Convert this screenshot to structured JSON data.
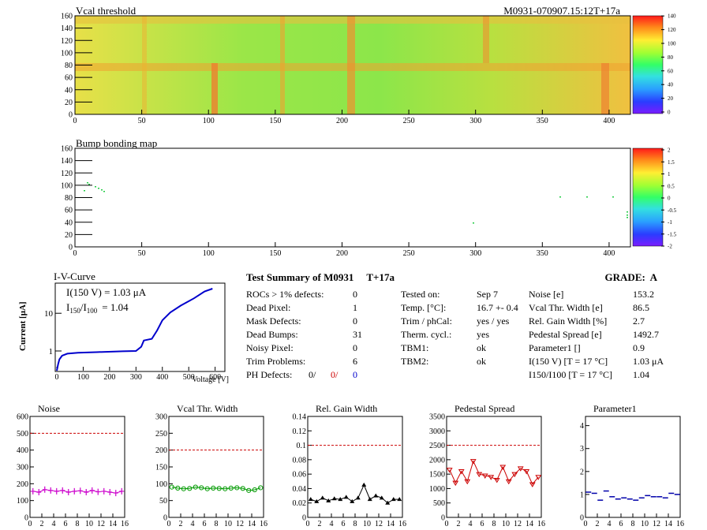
{
  "header": {
    "map1_title": "Vcal threshold",
    "module_id": "M0931-070907.15:12T+17a",
    "map2_title": "Bump bonding map"
  },
  "maps": {
    "x_ticks": [
      "0",
      "50",
      "100",
      "150",
      "200",
      "250",
      "300",
      "350",
      "400"
    ],
    "y_ticks": [
      "0",
      "20",
      "40",
      "60",
      "80",
      "100",
      "120",
      "140",
      "160"
    ],
    "vcal_colorbar": [
      "0",
      "20",
      "40",
      "60",
      "80",
      "100",
      "120",
      "140"
    ],
    "bump_colorbar": [
      "-2",
      "-1.5",
      "-1",
      "-0.5",
      "0",
      "0.5",
      "1",
      "1.5",
      "2"
    ]
  },
  "iv_curve": {
    "title": "I-V-Curve",
    "ylabel": "Current [μA]",
    "xlabel": "Voltage [V]",
    "x_ticks": [
      "0",
      "100",
      "200",
      "300",
      "400",
      "500",
      "600"
    ],
    "y_ticks": [
      "1",
      "10"
    ],
    "annot1": "I(150 V) = 1.03 μA",
    "annot2_a": "I",
    "annot2_sub1": "150",
    "annot2_b": "/I",
    "annot2_sub2": "100",
    "annot2_c": "=  1.04",
    "color": "#0000cc"
  },
  "summary": {
    "title": "Test Summary of M0931     T+17a",
    "grade": "GRADE:  A",
    "col1": [
      {
        "label": "ROCs > 1% defects:",
        "value": "0"
      },
      {
        "label": "Dead Pixel:",
        "value": "1"
      },
      {
        "label": "Mask Defects:",
        "value": "0"
      },
      {
        "label": "Dead Bumps:",
        "value": "31"
      },
      {
        "label": "Noisy Pixel:",
        "value": "0"
      },
      {
        "label": "Trim Problems:",
        "value": "6"
      }
    ],
    "ph_label": "PH Defects:",
    "ph_values": [
      "0/",
      "0/",
      "0"
    ],
    "ph_colors": [
      "#000000",
      "#cc0000",
      "#0000cc"
    ],
    "col2": [
      {
        "label": "Tested on:",
        "value": "Sep 7"
      },
      {
        "label": "Temp. [°C]:",
        "value": "16.7 +- 0.4"
      },
      {
        "label": "Trim / phCal:",
        "value": "yes / yes"
      },
      {
        "label": "Therm. cycl.:",
        "value": "yes"
      },
      {
        "label": "TBM1:",
        "value": "ok"
      },
      {
        "label": "TBM2:",
        "value": "ok"
      }
    ],
    "col3": [
      {
        "label": "Noise [e]",
        "value": "153.2"
      },
      {
        "label": "Vcal Thr. Width [e]",
        "value": "86.5"
      },
      {
        "label": "Rel. Gain Width [%]",
        "value": "2.7"
      },
      {
        "label": "Pedestal Spread [e]",
        "value": "1492.7"
      },
      {
        "label": "Parameter1 []",
        "value": "0.9"
      },
      {
        "label": "I(150 V) [T = 17 °C]",
        "value": "1.03 μA"
      },
      {
        "label": "I150/I100  [T = 17 °C]",
        "value": "1.04"
      }
    ]
  },
  "chart_data": [
    {
      "type": "line",
      "title": "Noise",
      "x": [
        0,
        1,
        2,
        3,
        4,
        5,
        6,
        7,
        8,
        9,
        10,
        11,
        12,
        13,
        14,
        15
      ],
      "values": [
        155,
        150,
        165,
        160,
        155,
        160,
        150,
        155,
        158,
        150,
        160,
        152,
        155,
        150,
        145,
        155
      ],
      "ylim": [
        0,
        600
      ],
      "yticks": [
        "0",
        "100",
        "200",
        "300",
        "400",
        "500",
        "600"
      ],
      "limit": 500,
      "color": "#cc00cc",
      "marker": "plus"
    },
    {
      "type": "line",
      "title": "Vcal Thr. Width",
      "x": [
        0,
        1,
        2,
        3,
        4,
        5,
        6,
        7,
        8,
        9,
        10,
        11,
        12,
        13,
        14,
        15
      ],
      "values": [
        90,
        87,
        85,
        86,
        90,
        88,
        85,
        87,
        86,
        85,
        87,
        88,
        86,
        80,
        82,
        88
      ],
      "ylim": [
        0,
        300
      ],
      "yticks": [
        "0",
        "50",
        "100",
        "150",
        "200",
        "250",
        "300"
      ],
      "limit": 200,
      "color": "#009900",
      "marker": "circle"
    },
    {
      "type": "line",
      "title": "Rel. Gain Width",
      "x": [
        0,
        1,
        2,
        3,
        4,
        5,
        6,
        7,
        8,
        9,
        10,
        11,
        12,
        13,
        14,
        15
      ],
      "values": [
        0.025,
        0.022,
        0.027,
        0.023,
        0.026,
        0.025,
        0.028,
        0.022,
        0.027,
        0.045,
        0.025,
        0.03,
        0.027,
        0.02,
        0.025,
        0.025
      ],
      "ylim": [
        0,
        0.14
      ],
      "yticks": [
        "0",
        "0.02",
        "0.04",
        "0.06",
        "0.08",
        "0.1",
        "0.12",
        "0.14"
      ],
      "limit": 0.1,
      "color": "#000000",
      "marker": "triangle"
    },
    {
      "type": "line",
      "title": "Pedestal Spread",
      "x": [
        0,
        1,
        2,
        3,
        4,
        5,
        6,
        7,
        8,
        9,
        10,
        11,
        12,
        13,
        14,
        15
      ],
      "values": [
        1650,
        1200,
        1600,
        1250,
        1950,
        1500,
        1450,
        1400,
        1300,
        1750,
        1250,
        1500,
        1700,
        1600,
        1150,
        1400
      ],
      "ylim": [
        0,
        3500
      ],
      "yticks": [
        "0",
        "500",
        "1000",
        "1500",
        "2000",
        "2500",
        "3000",
        "3500"
      ],
      "limit": 2500,
      "color": "#cc0000",
      "marker": "triangle-down"
    },
    {
      "type": "scatter",
      "title": "Parameter1",
      "x": [
        0,
        1,
        2,
        3,
        4,
        5,
        6,
        7,
        8,
        9,
        10,
        11,
        12,
        13,
        14,
        15
      ],
      "values": [
        1.1,
        1.05,
        0.75,
        1.15,
        0.9,
        0.8,
        0.85,
        0.8,
        0.75,
        0.85,
        0.95,
        0.9,
        0.9,
        0.85,
        1.05,
        1.0
      ],
      "ylim": [
        0,
        4.4
      ],
      "yticks": [
        "0",
        "1",
        "2",
        "3",
        "4"
      ],
      "color": "#0000aa",
      "marker": "dash"
    }
  ],
  "small_x_ticks": [
    "0",
    "2",
    "4",
    "6",
    "8",
    "10",
    "12",
    "14",
    "16"
  ]
}
